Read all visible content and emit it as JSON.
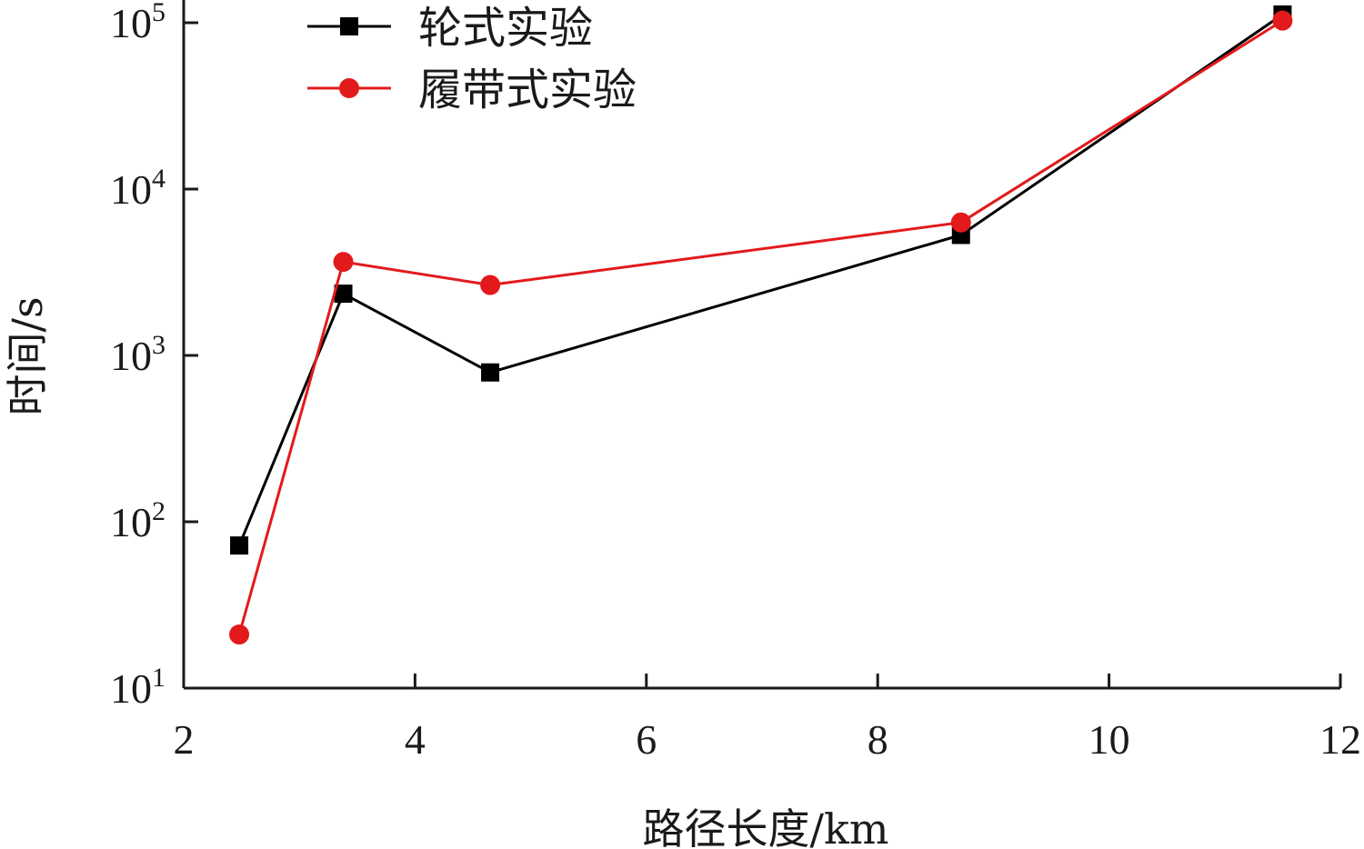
{
  "chart_data": {
    "type": "line",
    "xlabel": "路径长度/km",
    "ylabel": "时间/s",
    "xlim": [
      2,
      12
    ],
    "xticks": [
      2,
      4,
      6,
      8,
      10,
      12
    ],
    "yscale": "log",
    "ylim": [
      10,
      100000
    ],
    "yticks": [
      {
        "base": "10",
        "exp": "1",
        "value": 10
      },
      {
        "base": "10",
        "exp": "2",
        "value": 100
      },
      {
        "base": "10",
        "exp": "3",
        "value": 1000
      },
      {
        "base": "10",
        "exp": "4",
        "value": 10000
      },
      {
        "base": "10",
        "exp": "5",
        "value": 100000
      }
    ],
    "grid": false,
    "legend_position": "top-left",
    "series": [
      {
        "name": "轮式实验",
        "color": "#000000",
        "marker": "square",
        "x": [
          2.48,
          3.38,
          4.65,
          8.72,
          11.5
        ],
        "y": [
          72,
          2350,
          790,
          5300,
          112000
        ]
      },
      {
        "name": "履带式实验",
        "color": "#e31a1c",
        "marker": "circle",
        "x": [
          2.48,
          3.38,
          4.65,
          8.72,
          11.5
        ],
        "y": [
          21,
          3650,
          2650,
          6300,
          103000
        ]
      }
    ]
  }
}
